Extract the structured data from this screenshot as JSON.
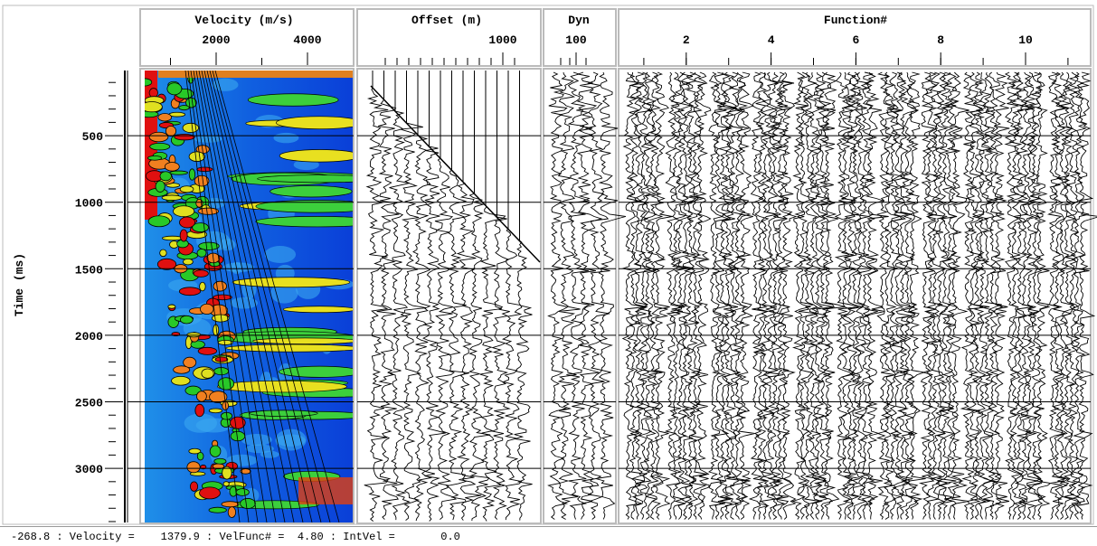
{
  "time_axis": {
    "label": "Time (ms)",
    "ticks": [
      500,
      1000,
      1500,
      2000,
      2500,
      3000
    ]
  },
  "panels": {
    "velocity": {
      "title": "Velocity (m/s)",
      "ticks": [
        2000,
        4000
      ]
    },
    "offset": {
      "title": "Offset (m)",
      "ticks": [
        1000
      ]
    },
    "dyn": {
      "title": "Dyn",
      "ticks": [
        100
      ]
    },
    "function": {
      "title": "Function#",
      "ticks": [
        2,
        4,
        6,
        8,
        10
      ]
    }
  },
  "status_bar": {
    "text": "-268.8 : Velocity =    1379.9 : VelFunc# =  4.80 : IntVel =       0.0"
  }
}
